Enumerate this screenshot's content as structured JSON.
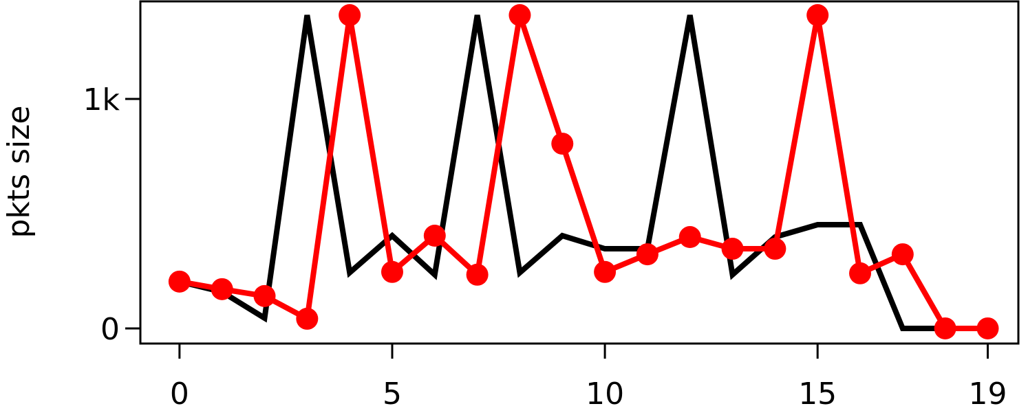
{
  "chart_data": {
    "type": "line",
    "ylabel": "pkts size",
    "x": [
      0,
      1,
      2,
      3,
      4,
      5,
      6,
      7,
      8,
      9,
      10,
      11,
      12,
      13,
      14,
      15,
      16,
      17,
      18,
      19
    ],
    "series": [
      {
        "color": "#000000",
        "marker": false,
        "values": [
          204,
          159,
          45,
          1365,
          243,
          404,
          234,
          1365,
          243,
          404,
          347,
          347,
          1365,
          234,
          398,
          452,
          452,
          0,
          0,
          0
        ]
      },
      {
        "color": "#ff0000",
        "marker": true,
        "values": [
          204,
          171,
          141,
          42,
          1365,
          246,
          404,
          234,
          1365,
          805,
          246,
          323,
          398,
          347,
          347,
          1365,
          240,
          323,
          0,
          0
        ]
      }
    ],
    "xlim": [
      -0.92,
      19.72
    ],
    "xticks": [
      0,
      5,
      10,
      15,
      19
    ],
    "ylim": [
      -66,
      1425
    ],
    "yticks": [
      0,
      {
        "value": 1000,
        "label": "1k"
      }
    ],
    "grid": false
  }
}
